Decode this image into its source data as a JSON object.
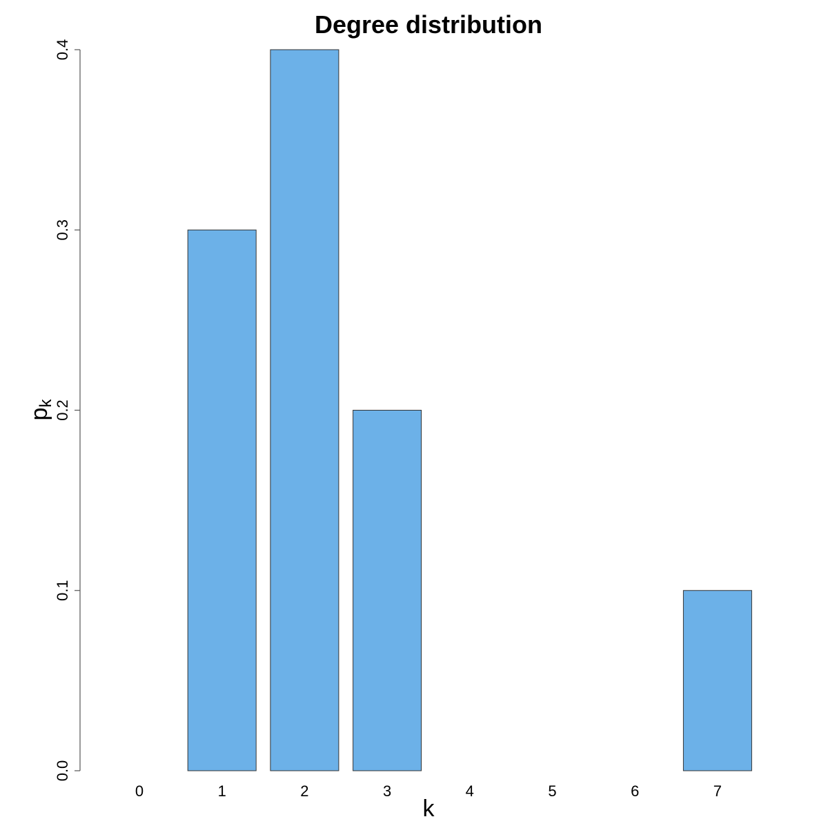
{
  "chart_data": {
    "type": "bar",
    "title": "Degree distribution",
    "xlabel": "k",
    "ylabel": {
      "main": "p",
      "subscript": "k"
    },
    "categories": [
      "0",
      "1",
      "2",
      "3",
      "4",
      "5",
      "6",
      "7"
    ],
    "values": [
      0.0,
      0.3,
      0.4,
      0.2,
      0.0,
      0.0,
      0.0,
      0.1
    ],
    "ylim": [
      0,
      0.4
    ],
    "yticks": [
      "0.0",
      "0.1",
      "0.2",
      "0.3",
      "0.4"
    ],
    "grid": false,
    "bar_color": "#6cb1e8",
    "bar_edge_color": "#333333"
  }
}
